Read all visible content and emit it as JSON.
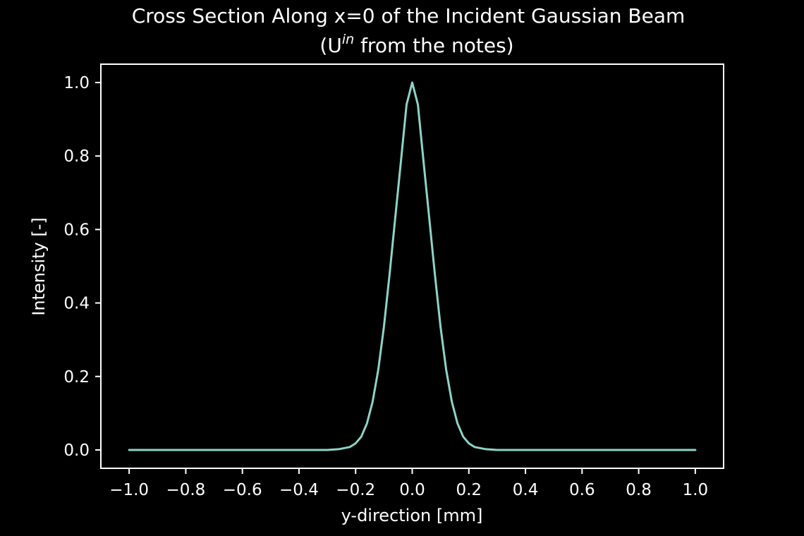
{
  "chart_data": {
    "type": "line",
    "title_line1": "Cross Section Along x=0 of the Incident Gaussian Beam",
    "title_line2_prefix": "(U",
    "title_line2_superscript": "in",
    "title_line2_suffix": " from the notes)",
    "xlabel": "y-direction [mm]",
    "ylabel": "Intensity [-]",
    "xlim": [
      -1.1,
      1.1
    ],
    "ylim": [
      -0.05,
      1.05
    ],
    "xticks": [
      -1.0,
      -0.8,
      -0.6,
      -0.4,
      -0.2,
      0.0,
      0.2,
      0.4,
      0.6,
      0.8,
      1.0
    ],
    "xtick_labels": [
      "−1.0",
      "−0.8",
      "−0.6",
      "−0.4",
      "−0.2",
      "0.0",
      "0.2",
      "0.4",
      "0.6",
      "0.8",
      "1.0"
    ],
    "yticks": [
      0.0,
      0.2,
      0.4,
      0.6,
      0.8,
      1.0
    ],
    "ytick_labels": [
      "0.0",
      "0.2",
      "0.4",
      "0.6",
      "0.8",
      "1.0"
    ],
    "grid": false,
    "series": [
      {
        "color": "#8dd3c7",
        "x": [
          -1.0,
          -0.4,
          -0.3,
          -0.26,
          -0.22,
          -0.2,
          -0.18,
          -0.16,
          -0.14,
          -0.12,
          -0.1,
          -0.08,
          -0.06,
          -0.04,
          -0.02,
          0.0,
          0.02,
          0.04,
          0.06,
          0.08,
          0.1,
          0.12,
          0.14,
          0.16,
          0.18,
          0.2,
          0.22,
          0.26,
          0.3,
          0.4,
          1.0
        ],
        "y": [
          0.0,
          0.0,
          0.0,
          0.002,
          0.008,
          0.018,
          0.036,
          0.072,
          0.131,
          0.218,
          0.335,
          0.478,
          0.632,
          0.785,
          0.94,
          1.0,
          0.94,
          0.785,
          0.632,
          0.478,
          0.335,
          0.218,
          0.131,
          0.072,
          0.036,
          0.018,
          0.008,
          0.002,
          0.0,
          0.0,
          0.0
        ]
      }
    ]
  },
  "colors": {
    "background": "#000000",
    "foreground": "#ffffff",
    "line": "#8dd3c7"
  }
}
